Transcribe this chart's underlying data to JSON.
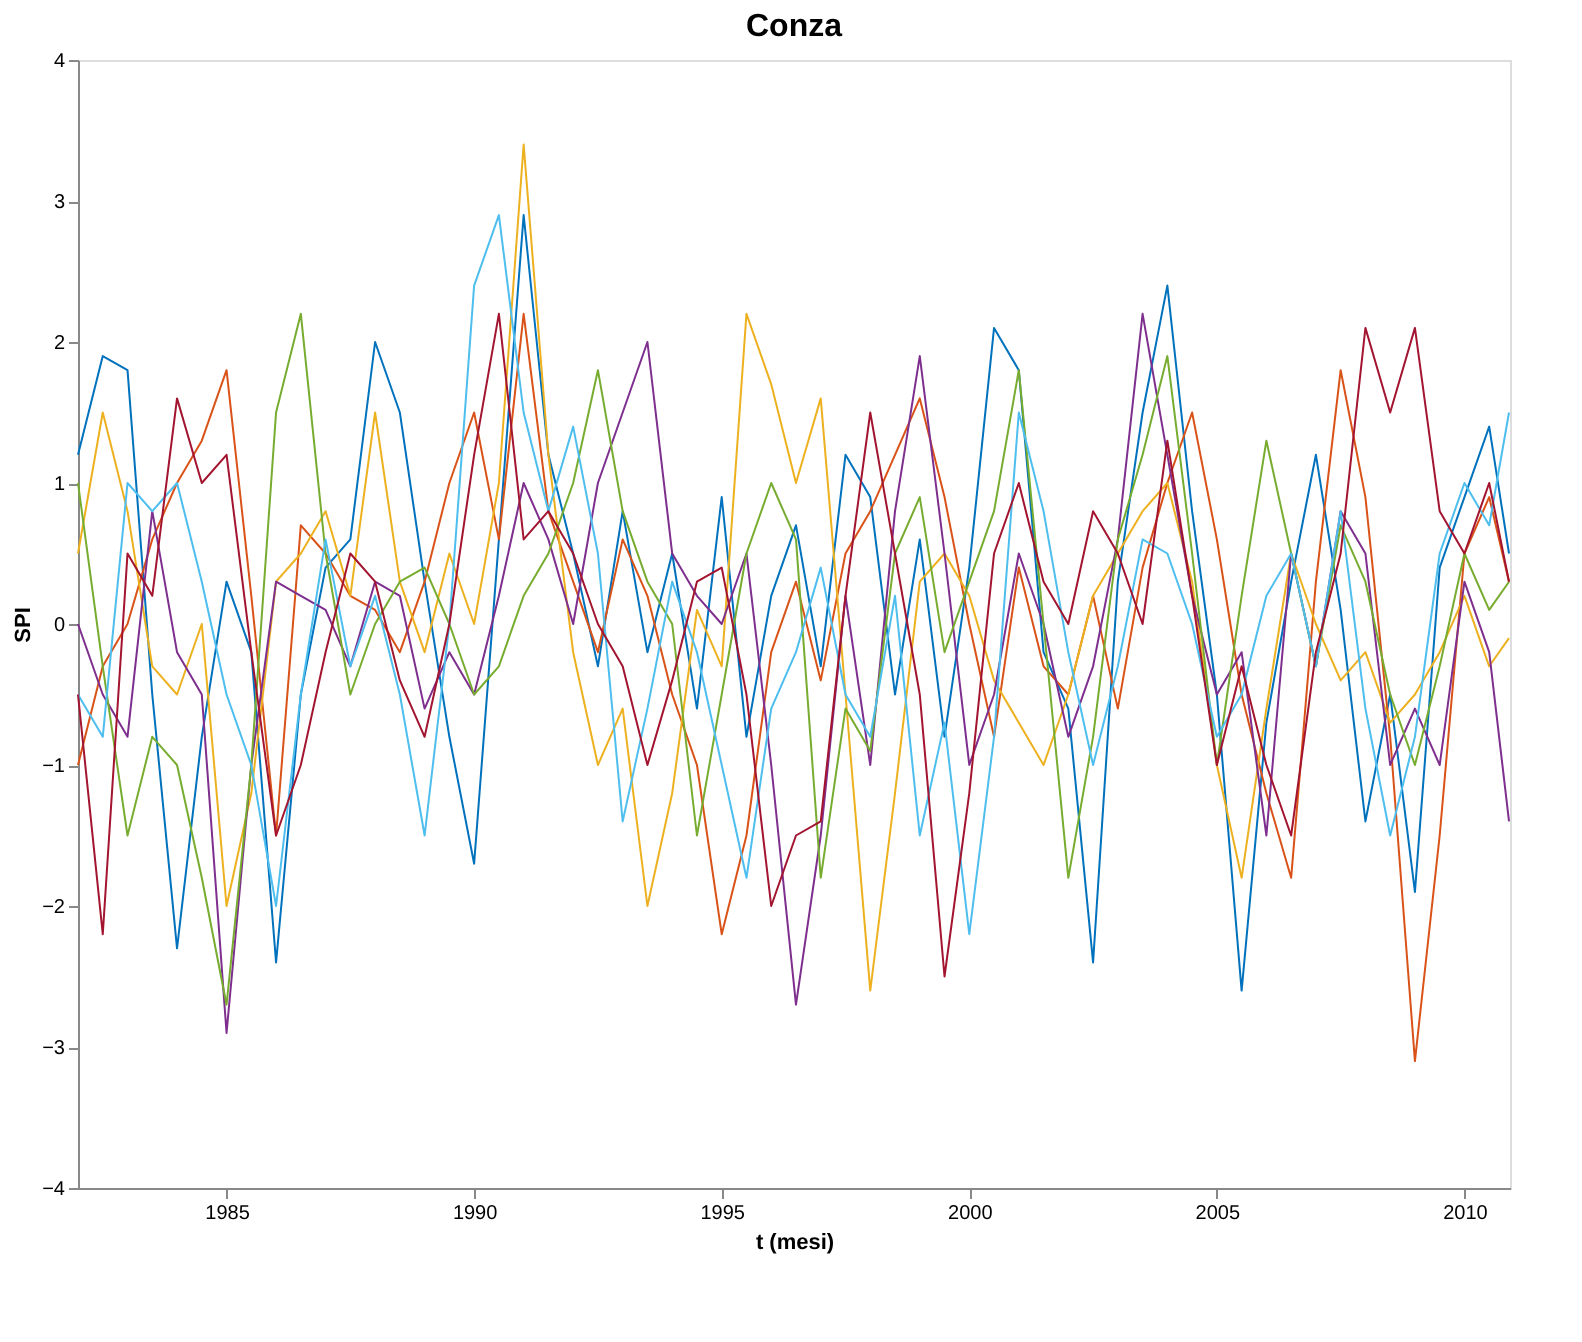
{
  "chart_data": {
    "type": "line",
    "title": "Conza",
    "xlabel": "t (mesi)",
    "ylabel": "SPI",
    "x": [
      1982,
      1982.5,
      1983,
      1983.5,
      1984,
      1984.5,
      1985,
      1985.5,
      1986,
      1986.5,
      1987,
      1987.5,
      1988,
      1988.5,
      1989,
      1989.5,
      1990,
      1990.5,
      1991,
      1991.5,
      1992,
      1992.5,
      1993,
      1993.5,
      1994,
      1994.5,
      1995,
      1995.5,
      1996,
      1996.5,
      1997,
      1997.5,
      1998,
      1998.5,
      1999,
      1999.5,
      2000,
      2000.5,
      2001,
      2001.5,
      2002,
      2002.5,
      2003,
      2003.5,
      2004,
      2004.5,
      2005,
      2005.5,
      2006,
      2006.5,
      2007,
      2007.5,
      2008,
      2008.5,
      2009,
      2009.5,
      2010,
      2010.5,
      2010.9
    ],
    "xlim": [
      1982,
      2010.92
    ],
    "xticks": [
      1985,
      1990,
      1995,
      2000,
      2005,
      2010
    ],
    "ylim": [
      -4,
      4
    ],
    "yticks": [
      -4,
      -3,
      -2,
      -1,
      0,
      1,
      2,
      3,
      4
    ],
    "grid": false,
    "legend": false,
    "marker": "none",
    "line_style": "solid",
    "series": [
      {
        "color": "#0072bd",
        "values": [
          1.2,
          1.9,
          1.8,
          -0.5,
          -2.3,
          -0.8,
          0.3,
          -0.2,
          -2.4,
          -0.5,
          0.4,
          0.6,
          2.0,
          1.5,
          0.3,
          -0.8,
          -1.7,
          0.6,
          2.9,
          1.2,
          0.5,
          -0.3,
          0.8,
          -0.2,
          0.5,
          -0.6,
          0.9,
          -0.8,
          0.2,
          0.7,
          -0.3,
          1.2,
          0.9,
          -0.5,
          0.6,
          -0.8,
          0.4,
          2.1,
          1.8,
          -0.2,
          -0.6,
          -2.4,
          0.3,
          1.5,
          2.4,
          0.8,
          -0.5,
          -2.6,
          -0.7,
          0.3,
          1.2,
          0.1,
          -1.4,
          -0.5,
          -1.9,
          0.4,
          0.9,
          1.4,
          0.5
        ]
      },
      {
        "color": "#d95319",
        "values": [
          -1.0,
          -0.3,
          0.0,
          0.6,
          1.0,
          1.3,
          1.8,
          0.2,
          -1.5,
          0.7,
          0.5,
          0.2,
          0.1,
          -0.2,
          0.3,
          1.0,
          1.5,
          0.6,
          2.2,
          0.8,
          0.3,
          -0.2,
          0.6,
          0.2,
          -0.5,
          -1.0,
          -2.2,
          -1.5,
          -0.2,
          0.3,
          -0.4,
          0.5,
          0.8,
          1.2,
          1.6,
          0.9,
          0.0,
          -0.8,
          0.4,
          -0.3,
          -0.5,
          0.2,
          -0.6,
          0.4,
          1.0,
          1.5,
          0.6,
          -0.5,
          -1.2,
          -1.8,
          0.3,
          1.8,
          0.9,
          -0.8,
          -3.1,
          -1.5,
          0.5,
          0.9,
          0.3
        ]
      },
      {
        "color": "#edb120",
        "values": [
          0.5,
          1.5,
          0.8,
          -0.3,
          -0.5,
          0.0,
          -2.0,
          -1.2,
          0.3,
          0.5,
          0.8,
          0.2,
          1.5,
          0.3,
          -0.2,
          0.5,
          0.0,
          1.0,
          3.4,
          1.2,
          -0.2,
          -1.0,
          -0.6,
          -2.0,
          -1.2,
          0.1,
          -0.3,
          2.2,
          1.7,
          1.0,
          1.6,
          -0.5,
          -2.6,
          -1.2,
          0.3,
          0.5,
          0.2,
          -0.4,
          -0.7,
          -1.0,
          -0.5,
          0.2,
          0.5,
          0.8,
          1.0,
          0.3,
          -1.0,
          -1.8,
          -0.6,
          0.5,
          0.0,
          -0.4,
          -0.2,
          -0.7,
          -0.5,
          -0.2,
          0.2,
          -0.3,
          -0.1
        ]
      },
      {
        "color": "#7e2f8e",
        "values": [
          0.0,
          -0.5,
          -0.8,
          0.8,
          -0.2,
          -0.5,
          -2.9,
          -1.0,
          0.3,
          0.2,
          0.1,
          -0.3,
          0.3,
          0.2,
          -0.6,
          -0.2,
          -0.5,
          0.2,
          1.0,
          0.6,
          0.0,
          1.0,
          1.5,
          2.0,
          0.5,
          0.2,
          0.0,
          0.5,
          -1.0,
          -2.7,
          -1.5,
          0.2,
          -1.0,
          0.8,
          1.9,
          0.5,
          -1.0,
          -0.5,
          0.5,
          0.0,
          -0.8,
          -0.3,
          0.6,
          2.2,
          1.2,
          0.2,
          -0.5,
          -0.2,
          -1.5,
          0.5,
          -0.3,
          0.8,
          0.5,
          -1.0,
          -0.6,
          -1.0,
          0.3,
          -0.2,
          -1.4
        ]
      },
      {
        "color": "#77ac30",
        "values": [
          1.0,
          -0.3,
          -1.5,
          -0.8,
          -1.0,
          -1.8,
          -2.7,
          -1.0,
          1.5,
          2.2,
          0.5,
          -0.5,
          0.0,
          0.3,
          0.4,
          0.0,
          -0.5,
          -0.3,
          0.2,
          0.5,
          1.0,
          1.8,
          0.8,
          0.3,
          0.0,
          -1.5,
          -0.5,
          0.5,
          1.0,
          0.6,
          -1.8,
          -0.6,
          -0.9,
          0.5,
          0.9,
          -0.2,
          0.3,
          0.8,
          1.8,
          0.0,
          -1.8,
          -0.8,
          0.6,
          1.2,
          1.9,
          0.5,
          -1.0,
          0.2,
          1.3,
          0.5,
          -0.3,
          0.7,
          0.3,
          -0.5,
          -1.0,
          -0.3,
          0.5,
          0.1,
          0.3
        ]
      },
      {
        "color": "#4dbeee",
        "values": [
          -0.5,
          -0.8,
          1.0,
          0.8,
          1.0,
          0.3,
          -0.5,
          -1.0,
          -2.0,
          -0.5,
          0.6,
          -0.3,
          0.2,
          -0.5,
          -1.5,
          0.0,
          2.4,
          2.9,
          1.5,
          0.8,
          1.4,
          0.5,
          -1.4,
          -0.6,
          0.3,
          -0.2,
          -1.0,
          -1.8,
          -0.6,
          -0.2,
          0.4,
          -0.5,
          -0.8,
          0.2,
          -1.5,
          -0.7,
          -2.2,
          -0.8,
          1.5,
          0.8,
          -0.2,
          -1.0,
          -0.3,
          0.6,
          0.5,
          0.0,
          -0.8,
          -0.5,
          0.2,
          0.5,
          -0.3,
          0.8,
          -0.6,
          -1.5,
          -0.8,
          0.5,
          1.0,
          0.7,
          1.5
        ]
      },
      {
        "color": "#a2142f",
        "values": [
          -0.5,
          -2.2,
          0.5,
          0.2,
          1.6,
          1.0,
          1.2,
          -0.2,
          -1.5,
          -1.0,
          -0.2,
          0.5,
          0.3,
          -0.4,
          -0.8,
          0.0,
          1.2,
          2.2,
          0.6,
          0.8,
          0.5,
          0.0,
          -0.3,
          -1.0,
          -0.4,
          0.3,
          0.4,
          -0.5,
          -2.0,
          -1.5,
          -1.4,
          0.2,
          1.5,
          0.5,
          -0.5,
          -2.5,
          -1.2,
          0.5,
          1.0,
          0.3,
          0.0,
          0.8,
          0.5,
          0.0,
          1.3,
          0.2,
          -1.0,
          -0.3,
          -1.0,
          -1.5,
          -0.2,
          0.5,
          2.1,
          1.5,
          2.1,
          0.8,
          0.5,
          1.0,
          0.3
        ]
      }
    ]
  }
}
